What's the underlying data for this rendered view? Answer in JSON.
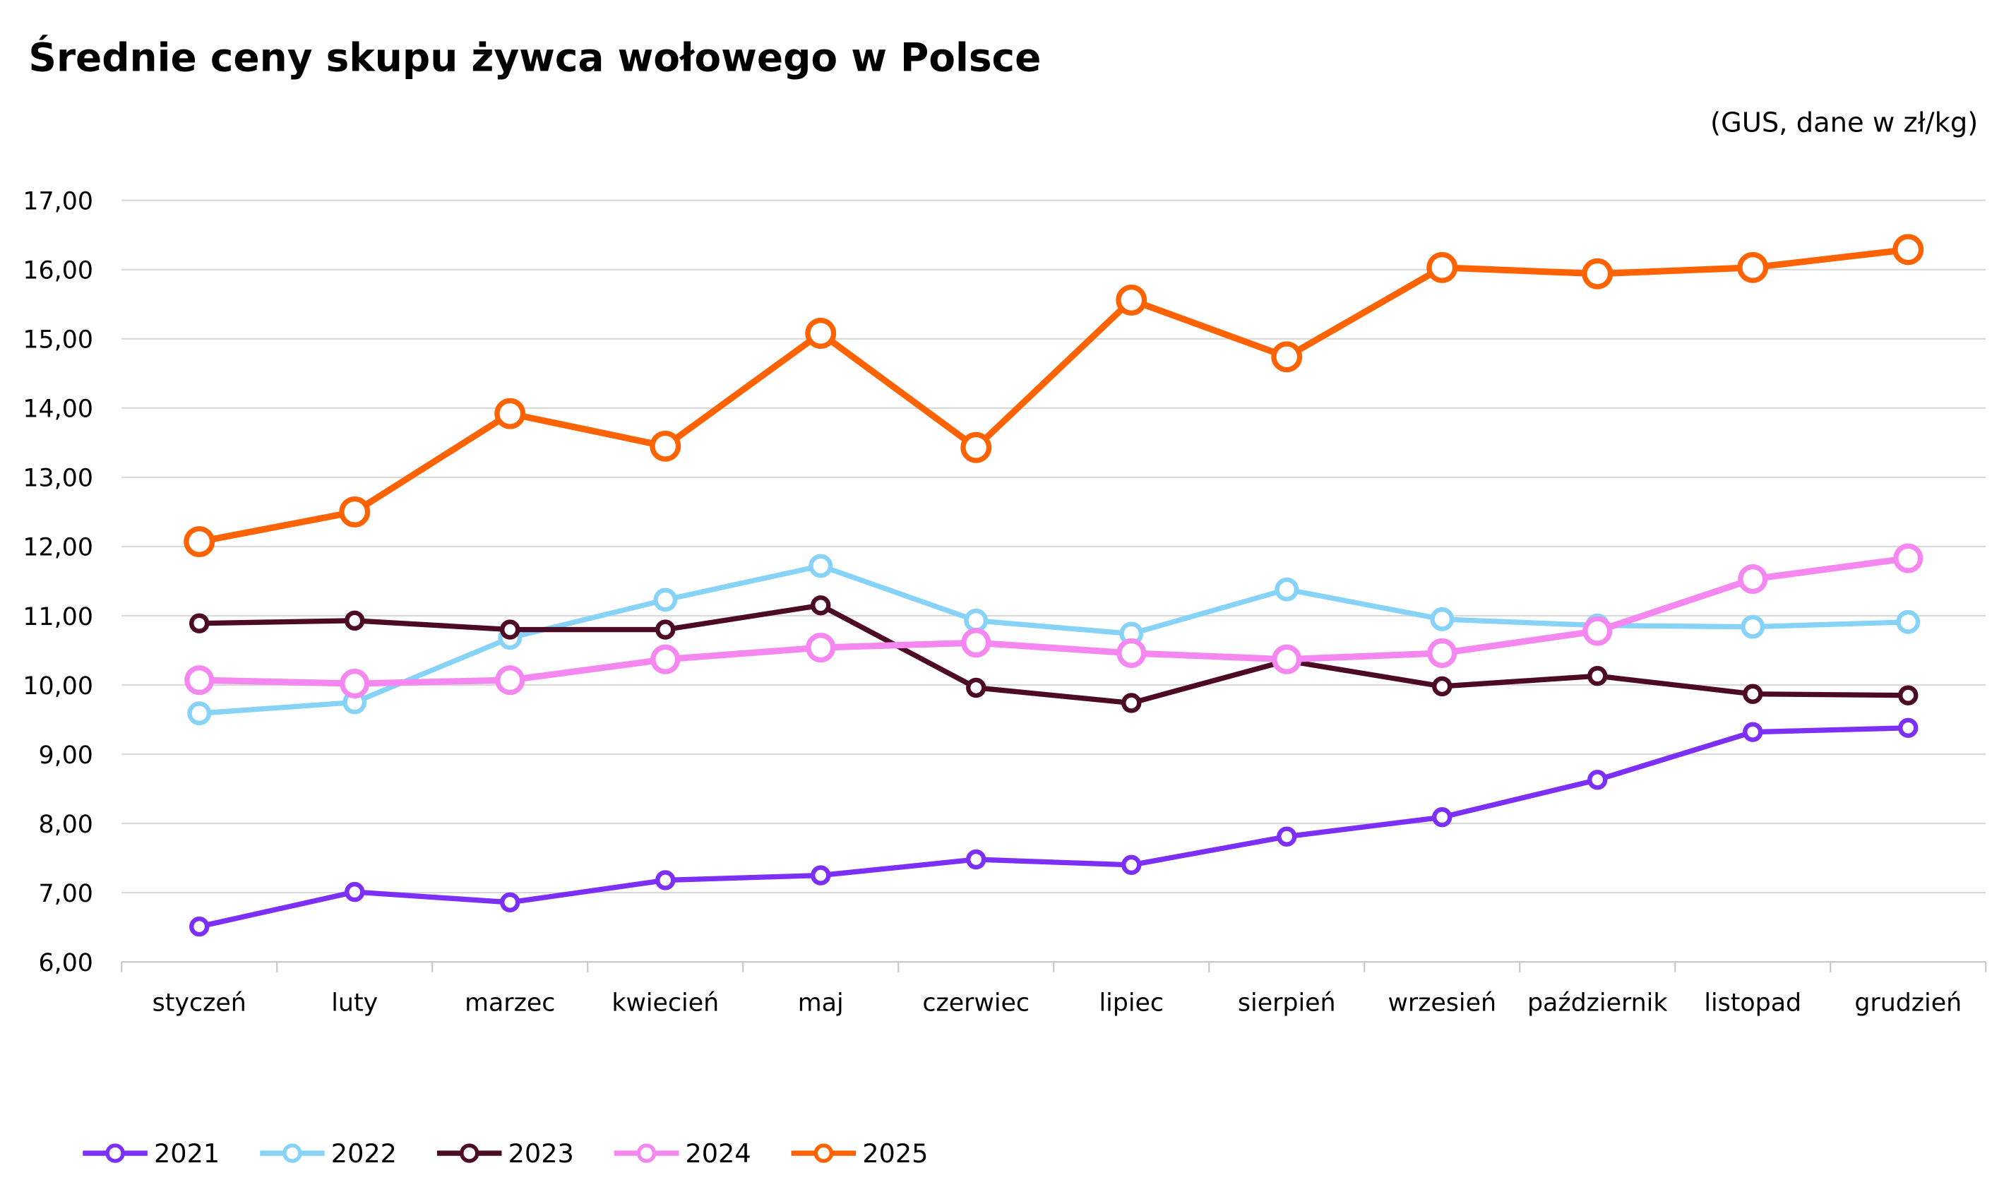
{
  "chart_data": {
    "type": "line",
    "title": "Średnie ceny skupu żywca wołowego w Polsce",
    "subtitle": "(GUS, dane w zł/kg)",
    "xlabel": "",
    "ylabel": "",
    "ylim": [
      6,
      17
    ],
    "yticks": [
      "6,00",
      "7,00",
      "8,00",
      "9,00",
      "10,00",
      "11,00",
      "12,00",
      "13,00",
      "14,00",
      "15,00",
      "16,00",
      "17,00"
    ],
    "grid": true,
    "legend": "bottom-left",
    "categories": [
      "styczeń",
      "luty",
      "marzec",
      "kwiecień",
      "maj",
      "czerwiec",
      "lipiec",
      "sierpień",
      "wrzesień",
      "październik",
      "listopad",
      "grudzień"
    ],
    "series": [
      {
        "name": "2021",
        "color": "#7b2ff7",
        "values": [
          6.51,
          7.01,
          6.86,
          7.18,
          7.25,
          7.48,
          7.4,
          7.81,
          8.09,
          8.63,
          9.32,
          9.38
        ]
      },
      {
        "name": "2022",
        "color": "#87d3f8",
        "values": [
          9.59,
          9.75,
          10.68,
          11.23,
          11.72,
          10.93,
          10.74,
          11.38,
          10.95,
          10.86,
          10.84,
          10.91
        ]
      },
      {
        "name": "2023",
        "color": "#4d0a25",
        "values": [
          10.89,
          10.93,
          10.8,
          10.8,
          11.15,
          9.96,
          9.74,
          10.35,
          9.98,
          10.13,
          9.87,
          9.85
        ]
      },
      {
        "name": "2024",
        "color": "#f588f0",
        "values": [
          10.07,
          10.02,
          10.07,
          10.37,
          10.54,
          10.61,
          10.46,
          10.37,
          10.46,
          10.78,
          11.53,
          11.83
        ]
      },
      {
        "name": "2025",
        "color": "#ff6200",
        "values": [
          12.07,
          12.5,
          13.92,
          13.45,
          15.08,
          13.43,
          15.56,
          14.74,
          16.03,
          15.94,
          16.03,
          16.29
        ]
      }
    ]
  }
}
